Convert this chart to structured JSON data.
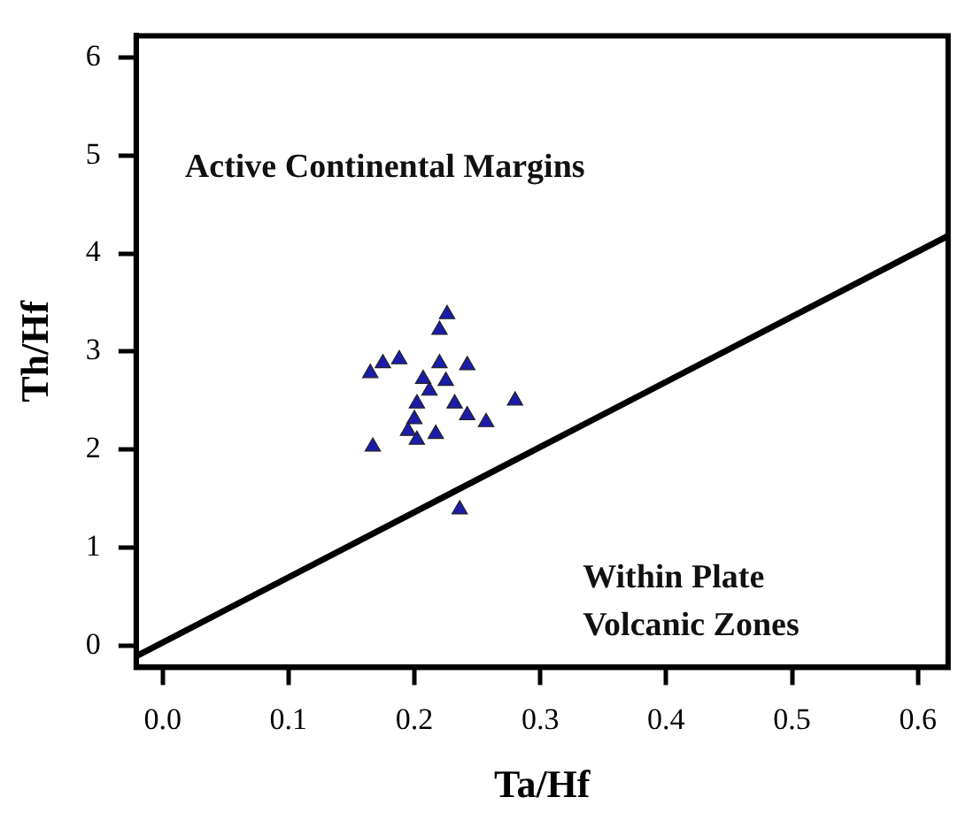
{
  "chart_data": {
    "type": "scatter",
    "xlabel": "Ta/Hf",
    "ylabel": "Th/Hf",
    "xlim": [
      -0.021,
      0.624
    ],
    "ylim": [
      -0.22,
      6.22
    ],
    "xticks": [
      {
        "value": 0,
        "label": "0.0"
      },
      0.1,
      0.2,
      0.3,
      0.4,
      0.5,
      0.6
    ],
    "yticks": [
      0,
      1,
      2,
      3,
      4,
      5,
      6
    ],
    "grid": false,
    "legend": false,
    "marker": "triangle",
    "annotations": [
      "Active Continental Margins",
      "Within Plate\nVolcanic Zones"
    ],
    "series": [
      {
        "color": "#1c1caa",
        "x": [
          0.226,
          0.22,
          0.165,
          0.175,
          0.188,
          0.22,
          0.242,
          0.207,
          0.212,
          0.202,
          0.232,
          0.242,
          0.257,
          0.28,
          0.2,
          0.195,
          0.202,
          0.217,
          0.167,
          0.236,
          0.225
        ],
        "values": [
          3.38,
          3.22,
          2.78,
          2.88,
          2.92,
          2.88,
          2.86,
          2.72,
          2.6,
          2.47,
          2.47,
          2.35,
          2.28,
          2.5,
          2.31,
          2.19,
          2.1,
          2.16,
          2.03,
          1.39,
          2.7
        ]
      },
      {
        "type": "line",
        "color": "#000000",
        "marker": "none",
        "x": [
          -0.02,
          0.624
        ],
        "values": [
          -0.1,
          4.18
        ]
      }
    ]
  }
}
